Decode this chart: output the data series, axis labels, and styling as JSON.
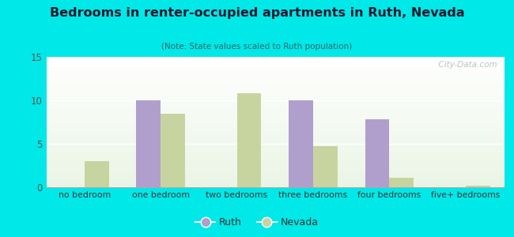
{
  "title": "Bedrooms in renter-occupied apartments in Ruth, Nevada",
  "subtitle": "(Note: State values scaled to Ruth population)",
  "categories": [
    "no bedroom",
    "one bedroom",
    "two bedrooms",
    "three bedrooms",
    "four bedrooms",
    "five+ bedrooms"
  ],
  "ruth_values": [
    0,
    10,
    0,
    10,
    7.8,
    0
  ],
  "nevada_values": [
    3.0,
    8.5,
    10.8,
    4.7,
    1.1,
    0.2
  ],
  "ruth_color": "#b09fcc",
  "nevada_color": "#c8d4a0",
  "background_outer": "#00e8e8",
  "plot_bg_top": "#f5f8f0",
  "plot_bg_bottom": "#d8ecd0",
  "ylim": [
    0,
    15
  ],
  "yticks": [
    0,
    5,
    10,
    15
  ],
  "bar_width": 0.32,
  "watermark": "  City-Data.com"
}
